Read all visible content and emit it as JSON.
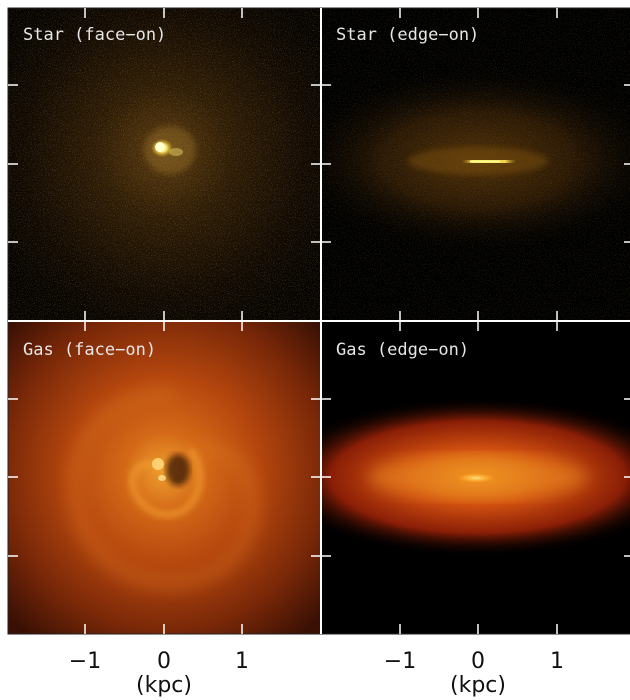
{
  "panels": [
    {
      "id": "star-face-on",
      "label": "Star (face−on)"
    },
    {
      "id": "star-edge-on",
      "label": "Star (edge−on)"
    },
    {
      "id": "gas-face-on",
      "label": "Gas (face−on)"
    },
    {
      "id": "gas-edge-on",
      "label": "Gas (edge−on)"
    }
  ],
  "x_axis": {
    "tick_labels": [
      "−1",
      "0",
      "1"
    ],
    "unit": "(kpc)"
  },
  "colors": {
    "background_dark": "#000000",
    "star_glow": "#e0b040",
    "star_core": "#ffff90",
    "gas_outer": "#6a2008",
    "gas_mid": "#c85010",
    "gas_inner": "#f29a20",
    "frame": "#ffffff",
    "frame_border": "#222222"
  }
}
